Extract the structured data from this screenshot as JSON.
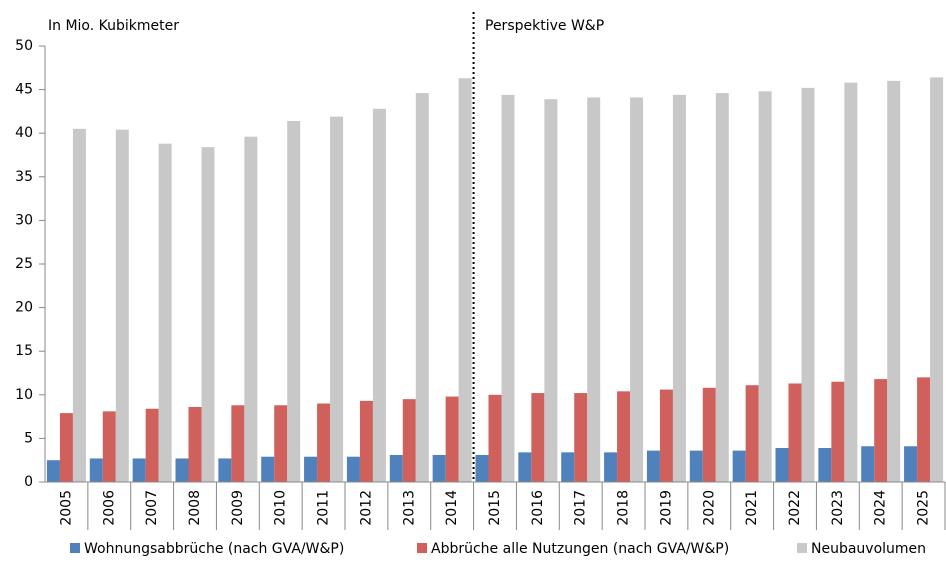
{
  "chart_data": {
    "type": "bar",
    "annotations": [
      "In Mio. Kubikmeter",
      "Perspektive W&P"
    ],
    "categories": [
      "2005",
      "2006",
      "2007",
      "2008",
      "2009",
      "2010",
      "2011",
      "2012",
      "2013",
      "2014",
      "2015",
      "2016",
      "2017",
      "2018",
      "2019",
      "2020",
      "2021",
      "2022",
      "2023",
      "2024",
      "2025"
    ],
    "series": [
      {
        "name": "Wohnungsabbrüche (nach GVA/W&P)",
        "color": "#4f81bd",
        "values": [
          2.5,
          2.7,
          2.7,
          2.7,
          2.7,
          2.9,
          2.9,
          2.9,
          3.1,
          3.1,
          3.1,
          3.4,
          3.4,
          3.4,
          3.6,
          3.6,
          3.6,
          3.9,
          3.9,
          4.1,
          4.1
        ]
      },
      {
        "name": "Abbrüche alle Nutzungen (nach GVA/W&P)",
        "color": "#d0605b",
        "values": [
          7.9,
          8.1,
          8.4,
          8.6,
          8.8,
          8.8,
          9.0,
          9.3,
          9.5,
          9.8,
          10.0,
          10.2,
          10.2,
          10.4,
          10.6,
          10.8,
          11.1,
          11.3,
          11.5,
          11.8,
          12.0
        ]
      },
      {
        "name": "Neubauvolumen",
        "color": "#c8c8c8",
        "values": [
          40.5,
          40.4,
          38.8,
          38.4,
          39.6,
          41.4,
          41.9,
          42.8,
          44.6,
          46.3,
          44.4,
          43.9,
          44.1,
          44.1,
          44.4,
          44.6,
          44.8,
          45.2,
          45.8,
          46.0,
          46.4
        ]
      }
    ],
    "ylim": [
      0,
      50
    ],
    "yticks": [
      0,
      5,
      10,
      15,
      20,
      25,
      30,
      35,
      40,
      45,
      50
    ],
    "grid": false,
    "legend": "bottom"
  }
}
